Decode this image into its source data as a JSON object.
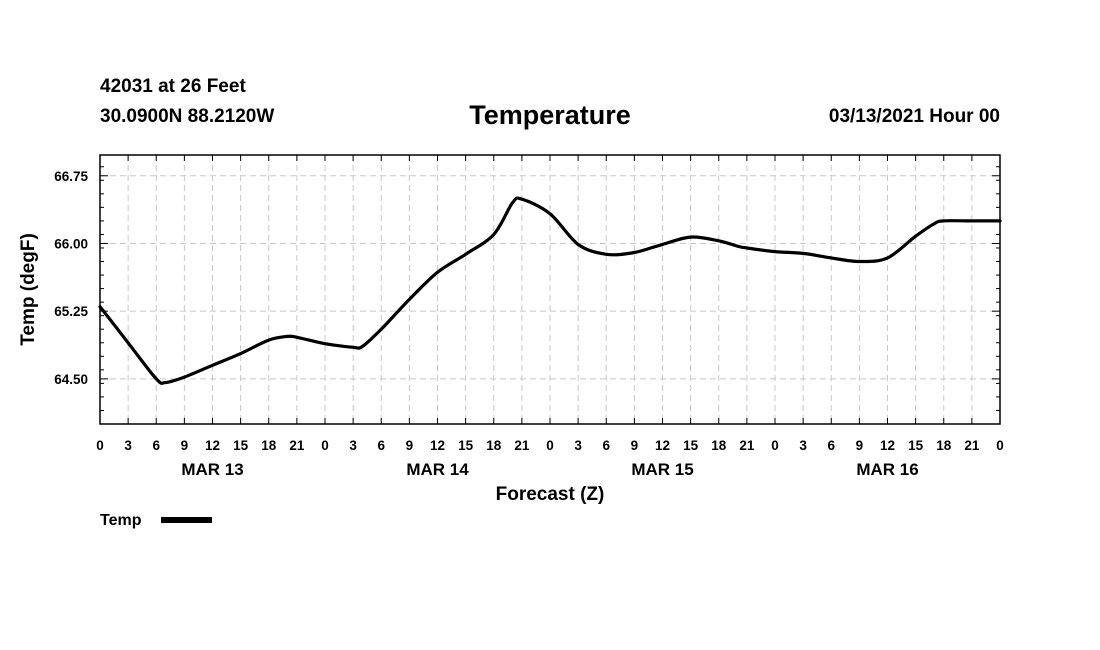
{
  "header": {
    "station": "42031 at 26 Feet",
    "coords": "30.0900N 88.2120W",
    "timestamp": "03/13/2021 Hour 00"
  },
  "chart_data": {
    "type": "line",
    "title": "Temperature",
    "xlabel": "Forecast (Z)",
    "ylabel": "Temp (degF)",
    "ylim": [
      64.0,
      66.98
    ],
    "xlim": [
      0,
      96
    ],
    "grid": true,
    "yticks": [
      64.5,
      65.25,
      66.0,
      66.75
    ],
    "ytick_labels": [
      "64.50",
      "65.25",
      "66.00",
      "66.75"
    ],
    "xtick_labels": [
      "0",
      "3",
      "6",
      "9",
      "12",
      "15",
      "18",
      "21",
      "0",
      "3",
      "6",
      "9",
      "12",
      "15",
      "18",
      "21",
      "0",
      "3",
      "6",
      "9",
      "12",
      "15",
      "18",
      "21",
      "0",
      "3",
      "6",
      "9",
      "12",
      "15",
      "18",
      "21",
      "0"
    ],
    "date_labels": [
      {
        "label": "MAR 13",
        "hour": 12
      },
      {
        "label": "MAR 14",
        "hour": 36
      },
      {
        "label": "MAR 15",
        "hour": 60
      },
      {
        "label": "MAR 16",
        "hour": 84
      }
    ],
    "legend": {
      "label": "Temp",
      "position": "bottom-left"
    },
    "series": [
      {
        "name": "Temp",
        "x": [
          0,
          3,
          6,
          7,
          9,
          12,
          15,
          18,
          20,
          21,
          24,
          27,
          28,
          30,
          33,
          36,
          39,
          42,
          44,
          45,
          48,
          51,
          54,
          57,
          60,
          63,
          66,
          68,
          69,
          72,
          75,
          78,
          81,
          84,
          87,
          89,
          90,
          93,
          96
        ],
        "values": [
          65.3,
          64.9,
          64.5,
          64.46,
          64.52,
          64.65,
          64.78,
          64.93,
          64.97,
          64.96,
          64.89,
          64.85,
          64.86,
          65.05,
          65.38,
          65.68,
          65.88,
          66.1,
          66.45,
          66.49,
          66.33,
          65.99,
          65.88,
          65.9,
          65.99,
          66.07,
          66.03,
          65.97,
          65.95,
          65.91,
          65.89,
          65.84,
          65.8,
          65.84,
          66.08,
          66.22,
          66.25,
          66.25,
          66.25
        ]
      }
    ]
  }
}
